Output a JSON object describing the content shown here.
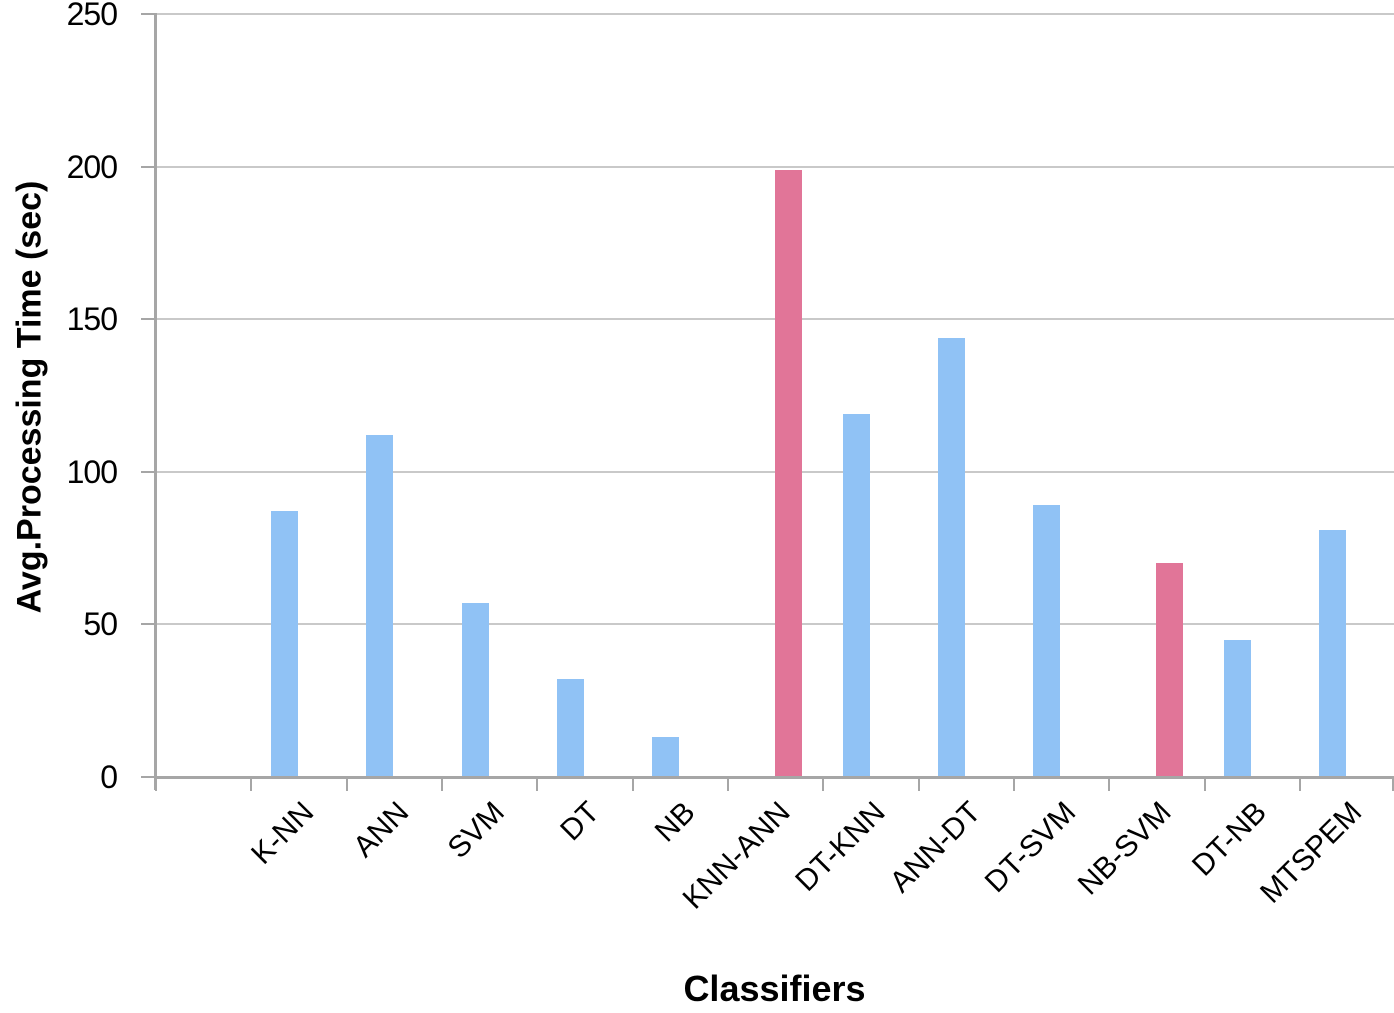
{
  "chart_data": {
    "type": "bar",
    "title": "",
    "xlabel": "Classifiers",
    "ylabel": "Avg.Processing Time (sec)",
    "categories": [
      "K-NN",
      "ANN",
      "SVM",
      "DT",
      "NB",
      "KNN-ANN",
      "DT-KNN",
      "ANN-DT",
      "DT-SVM",
      "NB-SVM",
      "DT-NB",
      "MTSPEM"
    ],
    "values": [
      87,
      112,
      57,
      32,
      13,
      199,
      119,
      144,
      89,
      70,
      45,
      81
    ],
    "bar_color_keys": [
      "blue",
      "blue",
      "blue",
      "blue",
      "blue",
      "pink",
      "blue",
      "blue",
      "blue",
      "pink",
      "blue",
      "blue"
    ],
    "highlighted_categories": [
      "KNN-ANN",
      "NB-SVM"
    ],
    "colors": {
      "blue": "#90c2f5",
      "pink": "#e17598"
    },
    "axis_color": "#a6a6a6",
    "gridline_color": "#c9c9c9",
    "ylim": [
      0,
      250
    ],
    "yticks": [
      0,
      50,
      100,
      150,
      200,
      250
    ],
    "grid": true,
    "legend_position": "none",
    "x_tick_label_rotation_deg": 45
  }
}
